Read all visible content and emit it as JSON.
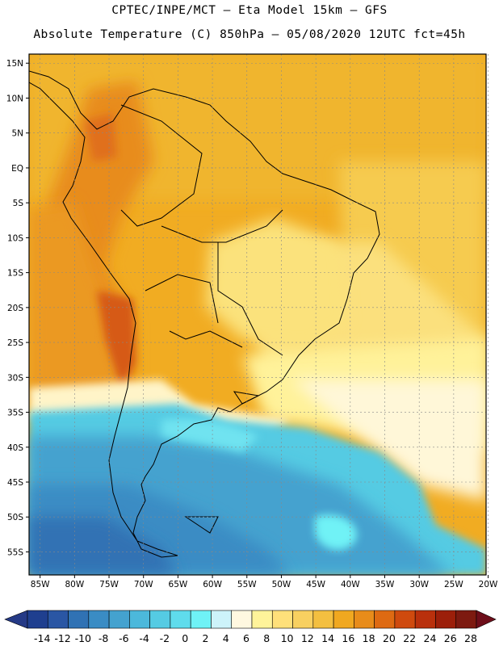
{
  "header": {
    "line1": "CPTEC/INPE/MCT –  Eta Model 15km – GFS",
    "line2": "Absolute Temperature (C) 850hPa – 05/08/2020 12UTC fct=45h"
  },
  "map": {
    "lat_ticks": [
      "15N",
      "10N",
      "5N",
      "EQ",
      "5S",
      "10S",
      "15S",
      "20S",
      "25S",
      "30S",
      "35S",
      "40S",
      "45S",
      "50S",
      "55S"
    ],
    "lon_ticks": [
      "85W",
      "80W",
      "75W",
      "70W",
      "65W",
      "60W",
      "55W",
      "50W",
      "45W",
      "40W",
      "35W",
      "30W",
      "25W",
      "20W"
    ]
  },
  "colorbar": {
    "labels": [
      "-14",
      "-12",
      "-10",
      "-8",
      "-6",
      "-4",
      "-2",
      "0",
      "2",
      "4",
      "6",
      "8",
      "10",
      "12",
      "14",
      "16",
      "18",
      "20",
      "22",
      "24",
      "26",
      "28"
    ],
    "colors": [
      "#1f3f8f",
      "#2a56a4",
      "#3072b4",
      "#3a8cc4",
      "#44a2cf",
      "#4cb8db",
      "#55cbe3",
      "#5fdcec",
      "#6ff2f6",
      "#cdf3fa",
      "#fff8e0",
      "#fff39a",
      "#ffe07a",
      "#f8d060",
      "#f3bf40",
      "#f0a820",
      "#e88c1a",
      "#de6a12",
      "#cf4a0e",
      "#b9300c",
      "#9c1f0a",
      "#7d1a10"
    ],
    "under_color": "#253a86",
    "over_color": "#6e0e1a"
  }
}
